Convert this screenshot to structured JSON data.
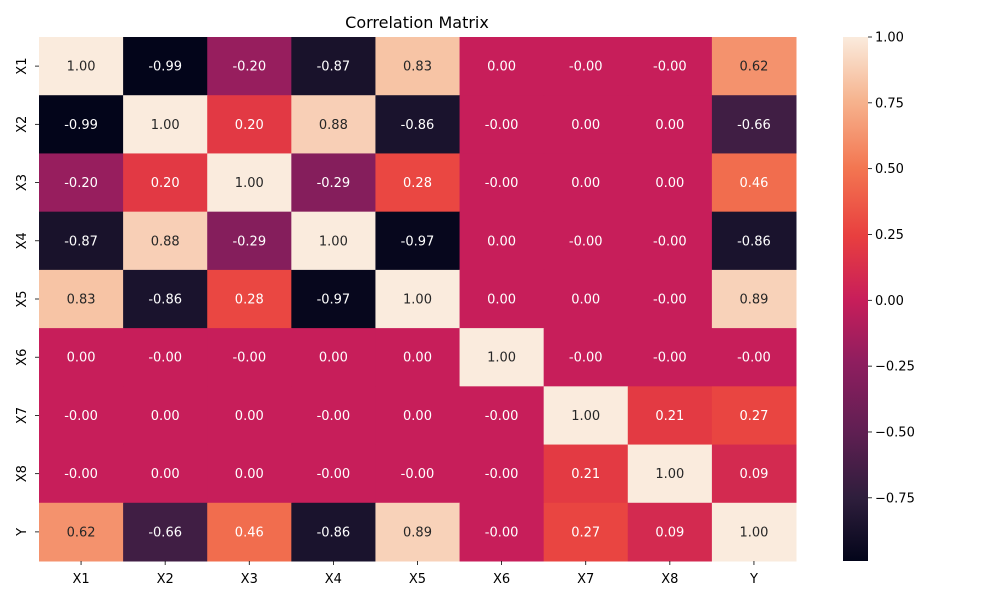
{
  "chart_data": {
    "type": "heatmap",
    "title": "Correlation Matrix",
    "x_labels": [
      "X1",
      "X2",
      "X3",
      "X4",
      "X5",
      "X6",
      "X7",
      "X8",
      "Y"
    ],
    "y_labels": [
      "X1",
      "X2",
      "X3",
      "X4",
      "X5",
      "X6",
      "X7",
      "X8",
      "Y"
    ],
    "values": [
      [
        1.0,
        -0.99,
        -0.2,
        -0.87,
        0.83,
        0.0,
        -0.0,
        -0.0,
        0.62
      ],
      [
        -0.99,
        1.0,
        0.2,
        0.88,
        -0.86,
        -0.0,
        0.0,
        0.0,
        -0.66
      ],
      [
        -0.2,
        0.2,
        1.0,
        -0.29,
        0.28,
        -0.0,
        0.0,
        0.0,
        0.46
      ],
      [
        -0.87,
        0.88,
        -0.29,
        1.0,
        -0.97,
        0.0,
        -0.0,
        -0.0,
        -0.86
      ],
      [
        0.83,
        -0.86,
        0.28,
        -0.97,
        1.0,
        0.0,
        0.0,
        -0.0,
        0.89
      ],
      [
        0.0,
        -0.0,
        -0.0,
        0.0,
        0.0,
        1.0,
        -0.0,
        -0.0,
        -0.0
      ],
      [
        -0.0,
        0.0,
        0.0,
        -0.0,
        0.0,
        -0.0,
        1.0,
        0.21,
        0.27
      ],
      [
        -0.0,
        0.0,
        0.0,
        -0.0,
        -0.0,
        -0.0,
        0.21,
        1.0,
        0.09
      ],
      [
        0.62,
        -0.66,
        0.46,
        -0.86,
        0.89,
        -0.0,
        0.27,
        0.09,
        1.0
      ]
    ],
    "value_range": [
      -0.99,
      1.0
    ],
    "colormap": "rocket",
    "colorbar": {
      "ticks": [
        1.0,
        0.75,
        0.5,
        0.25,
        0.0,
        -0.25,
        -0.5,
        -0.75
      ],
      "tick_labels": [
        "1.00",
        "0.75",
        "0.50",
        "0.25",
        "0.00",
        "−0.25",
        "−0.50",
        "−0.75"
      ]
    }
  }
}
